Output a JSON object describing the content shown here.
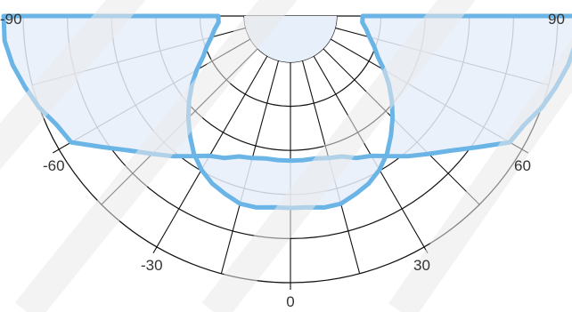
{
  "chart_data": {
    "type": "polar",
    "angle_unit": "degrees",
    "angular_range": [
      -90,
      90
    ],
    "angular_ticks": [
      -90,
      -60,
      -30,
      0,
      30,
      60,
      90
    ],
    "tick_labels": {
      "m90": "-90",
      "m60": "-60",
      "m30": "-30",
      "zero": "0",
      "p30": "30",
      "p60": "60",
      "p90": "90"
    },
    "radial_rings": 5,
    "grid": true,
    "series": [
      {
        "color": "#6ab4e6",
        "fill": "#e6effa",
        "angles": [
          -90,
          -85,
          -80,
          -75,
          -70,
          -65,
          -60,
          -55,
          -50,
          -45,
          -40,
          -35,
          -30,
          -25,
          -20,
          -15,
          -10,
          -5,
          0,
          5,
          10,
          15,
          20,
          25,
          30,
          35,
          40,
          45,
          50,
          55,
          60,
          65,
          70,
          75,
          80,
          85,
          90
        ],
        "outer": [
          1.0,
          1.0,
          0.98,
          0.95,
          0.92,
          0.88,
          0.86,
          0.76,
          0.68,
          0.62,
          0.57,
          0.52,
          0.48,
          0.46,
          0.43,
          0.42,
          0.41,
          0.41,
          0.41,
          0.41,
          0.41,
          0.42,
          0.43,
          0.46,
          0.48,
          0.52,
          0.57,
          0.62,
          0.68,
          0.76,
          0.86,
          0.88,
          0.92,
          0.95,
          0.98,
          1.0,
          1.0
        ],
        "inner": [
          0.3,
          0.3,
          0.32,
          0.34,
          0.37,
          0.4,
          0.45,
          0.5,
          0.55,
          0.6,
          0.65,
          0.7,
          0.74,
          0.77,
          0.79,
          0.81,
          0.81,
          0.8,
          0.8,
          0.8,
          0.81,
          0.81,
          0.79,
          0.77,
          0.74,
          0.7,
          0.65,
          0.6,
          0.55,
          0.5,
          0.45,
          0.4,
          0.37,
          0.34,
          0.32,
          0.3,
          0.3
        ]
      }
    ],
    "watermark_color": "#e9e9e9"
  }
}
